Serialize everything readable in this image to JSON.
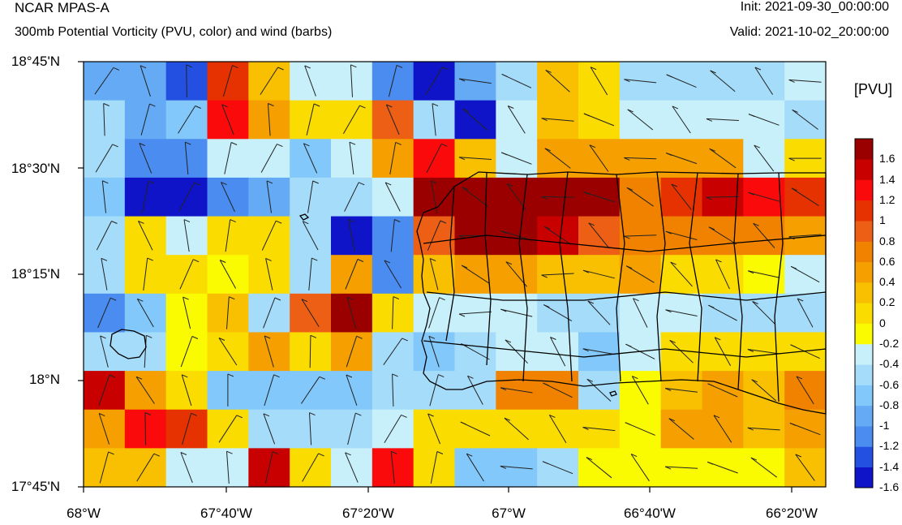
{
  "header": {
    "title": "NCAR MPAS-A",
    "subtitle": "300mb Potential Vorticity (PVU, color) and wind (barbs)",
    "init": "Init: 2021-09-30_00:00:00",
    "valid": "Valid: 2021-10-02_20:00:00"
  },
  "axes": {
    "lat_labels": [
      "18°45'N",
      "18°30'N",
      "18°15'N",
      "18°N",
      "17°45'N"
    ],
    "lon_labels": [
      "68°W",
      "67°40'W",
      "67°20'W",
      "67°W",
      "66°40'W",
      "66°20'W"
    ]
  },
  "colorbar": {
    "unit": "[PVU]",
    "levels": [
      "1.6",
      "1.4",
      "1.2",
      "1",
      "0.8",
      "0.6",
      "0.4",
      "0.2",
      "0",
      "-0.2",
      "-0.4",
      "-0.6",
      "-0.8",
      "-1",
      "-1.2",
      "-1.4",
      "-1.6"
    ],
    "colors": [
      "#0f14c8",
      "#2350e1",
      "#4b8cf0",
      "#64aaf5",
      "#82c8fa",
      "#a5dcfa",
      "#c8f0fa",
      "#fafa00",
      "#fadc00",
      "#f8c000",
      "#f5a000",
      "#f08200",
      "#ec5f14",
      "#e63200",
      "#fa0a0a",
      "#c80000",
      "#9b0000"
    ]
  },
  "grid": {
    "colors": [
      "#0f14c8",
      "#2350e1",
      "#4b8cf0",
      "#64aaf5",
      "#82c8fa",
      "#a5dcfa",
      "#c8f0fa",
      "#fafa00",
      "#fadc00",
      "#f8c000",
      "#f5a000",
      "#f08200",
      "#ec5f14",
      "#e63200",
      "#fa0a0a",
      "#c80000",
      "#9b0000"
    ],
    "rows": [
      [
        3,
        3,
        1,
        13,
        9,
        6,
        6,
        2,
        0,
        3,
        5,
        9,
        8,
        5,
        5,
        5,
        5,
        6
      ],
      [
        5,
        3,
        4,
        14,
        10,
        8,
        8,
        12,
        5,
        0,
        6,
        9,
        8,
        6,
        6,
        6,
        6,
        5
      ],
      [
        5,
        2,
        2,
        6,
        6,
        4,
        6,
        10,
        14,
        9,
        6,
        10,
        10,
        10,
        10,
        10,
        6,
        8
      ],
      [
        4,
        0,
        0,
        2,
        3,
        5,
        5,
        6,
        16,
        16,
        16,
        16,
        16,
        11,
        13,
        15,
        14,
        13
      ],
      [
        5,
        8,
        6,
        8,
        8,
        5,
        0,
        2,
        12,
        16,
        16,
        15,
        12,
        11,
        11,
        11,
        11,
        10
      ],
      [
        5,
        8,
        8,
        7,
        8,
        5,
        10,
        2,
        9,
        10,
        10,
        9,
        9,
        10,
        8,
        8,
        7,
        6
      ],
      [
        2,
        4,
        7,
        9,
        5,
        12,
        16,
        8,
        6,
        6,
        6,
        5,
        5,
        6,
        6,
        5,
        5,
        5
      ],
      [
        5,
        5,
        7,
        8,
        10,
        8,
        10,
        5,
        4,
        5,
        6,
        6,
        4,
        6,
        8,
        8,
        8,
        8
      ],
      [
        15,
        10,
        8,
        4,
        4,
        4,
        4,
        5,
        5,
        5,
        11,
        11,
        5,
        7,
        9,
        10,
        9,
        11
      ],
      [
        10,
        14,
        13,
        8,
        5,
        5,
        5,
        6,
        8,
        8,
        8,
        8,
        8,
        7,
        10,
        10,
        9,
        10
      ],
      [
        9,
        9,
        6,
        6,
        15,
        8,
        6,
        14,
        8,
        4,
        4,
        5,
        7,
        7,
        7,
        7,
        7,
        9
      ]
    ]
  }
}
